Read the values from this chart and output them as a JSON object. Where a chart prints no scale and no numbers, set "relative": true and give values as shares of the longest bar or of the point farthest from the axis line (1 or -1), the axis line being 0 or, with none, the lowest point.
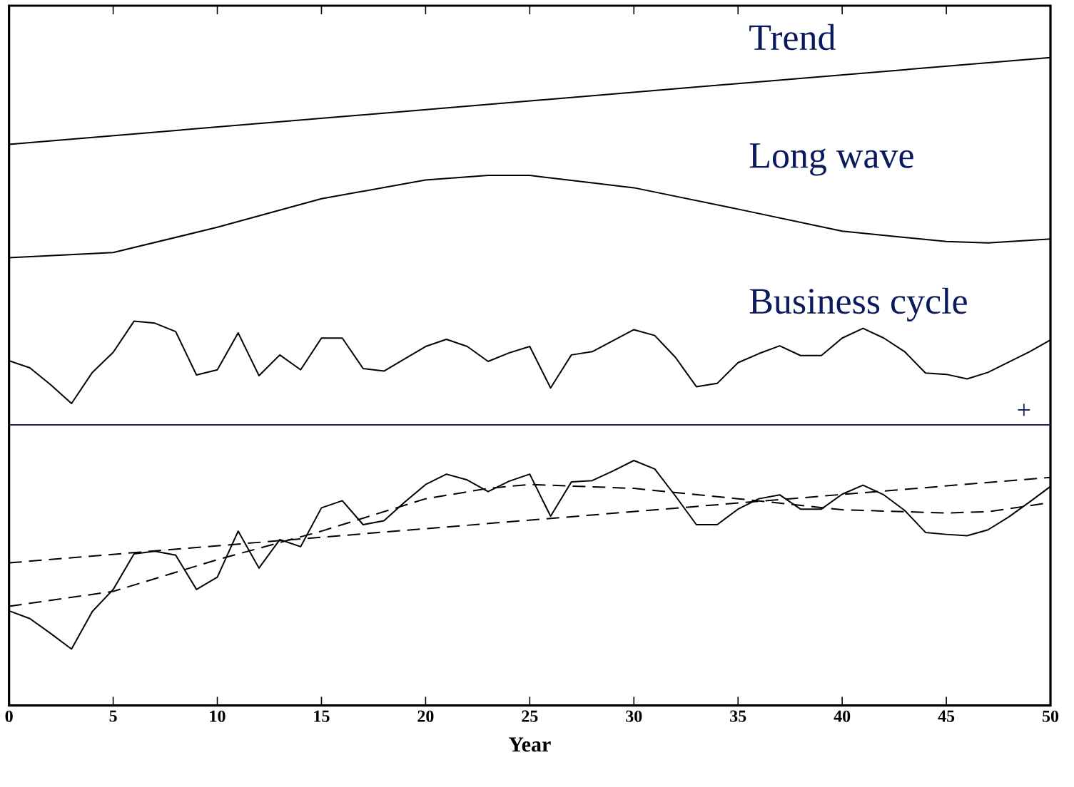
{
  "chart_data": {
    "type": "line",
    "relative": true,
    "xlabel": "Year",
    "xlim": [
      0,
      50
    ],
    "xticks": [
      0,
      5,
      10,
      15,
      20,
      25,
      30,
      35,
      40,
      45,
      50
    ],
    "series": [
      {
        "name": "Trend",
        "color": "#000000",
        "line_style": "solid",
        "x": [
          0,
          50
        ],
        "values": [
          0.866,
          1.0
        ]
      },
      {
        "name": "Long wave",
        "color": "#000000",
        "line_style": "solid",
        "x": [
          0,
          5,
          10,
          15,
          20,
          23,
          25,
          30,
          35,
          40,
          45,
          47,
          50
        ],
        "values": [
          0.691,
          0.699,
          0.738,
          0.782,
          0.811,
          0.818,
          0.818,
          0.799,
          0.766,
          0.732,
          0.716,
          0.714,
          0.72
        ]
      },
      {
        "name": "Business cycle",
        "color": "#000000",
        "line_style": "solid",
        "x": [
          0,
          1,
          2,
          3,
          4,
          5,
          6,
          7,
          8,
          9,
          10,
          11,
          12,
          13,
          14,
          15,
          16,
          17,
          18,
          19,
          20,
          21,
          22,
          23,
          24,
          25,
          26,
          27,
          28,
          29,
          30,
          31,
          32,
          33,
          34,
          35,
          36,
          37,
          38,
          39,
          40,
          41,
          42,
          43,
          44,
          45,
          46,
          47,
          48,
          49,
          50
        ],
        "values": [
          0.532,
          0.521,
          0.495,
          0.466,
          0.514,
          0.545,
          0.593,
          0.59,
          0.577,
          0.51,
          0.518,
          0.575,
          0.509,
          0.541,
          0.518,
          0.567,
          0.567,
          0.52,
          0.516,
          0.535,
          0.554,
          0.565,
          0.554,
          0.531,
          0.544,
          0.554,
          0.49,
          0.541,
          0.546,
          0.563,
          0.58,
          0.571,
          0.537,
          0.492,
          0.497,
          0.529,
          0.543,
          0.555,
          0.54,
          0.54,
          0.567,
          0.582,
          0.567,
          0.546,
          0.513,
          0.511,
          0.504,
          0.514,
          0.53,
          0.546,
          0.564
        ]
      },
      {
        "color": "#000000",
        "line_style": "solid",
        "x": [
          0,
          1,
          2,
          3,
          4,
          5,
          6,
          7,
          8,
          9,
          10,
          11,
          12,
          13,
          14,
          15,
          16,
          17,
          18,
          19,
          20,
          21,
          22,
          23,
          24,
          25,
          26,
          27,
          28,
          29,
          30,
          31,
          32,
          33,
          34,
          35,
          36,
          37,
          38,
          39,
          40,
          41,
          42,
          43,
          44,
          45,
          46,
          47,
          48,
          49,
          50
        ],
        "values": [
          0.146,
          0.134,
          0.111,
          0.087,
          0.145,
          0.179,
          0.234,
          0.238,
          0.232,
          0.179,
          0.198,
          0.269,
          0.212,
          0.256,
          0.245,
          0.305,
          0.316,
          0.279,
          0.285,
          0.314,
          0.341,
          0.357,
          0.348,
          0.33,
          0.346,
          0.357,
          0.292,
          0.345,
          0.347,
          0.362,
          0.378,
          0.365,
          0.323,
          0.279,
          0.279,
          0.303,
          0.319,
          0.325,
          0.303,
          0.303,
          0.326,
          0.34,
          0.325,
          0.301,
          0.267,
          0.264,
          0.262,
          0.271,
          0.291,
          0.314,
          0.338
        ]
      },
      {
        "color": "#000000",
        "line_style": "dashed",
        "x": [
          0,
          50
        ],
        "values": [
          0.22,
          0.352
        ]
      },
      {
        "color": "#000000",
        "line_style": "dashed",
        "x": [
          0,
          5,
          10,
          15,
          20,
          23,
          25,
          30,
          35,
          40,
          45,
          47,
          50
        ],
        "values": [
          0.153,
          0.176,
          0.225,
          0.269,
          0.319,
          0.335,
          0.341,
          0.335,
          0.319,
          0.302,
          0.297,
          0.299,
          0.313
        ]
      }
    ],
    "ref_lines": [
      {
        "axis": "y",
        "value": 0.433,
        "label": "+",
        "color": "#1a2466"
      }
    ]
  }
}
